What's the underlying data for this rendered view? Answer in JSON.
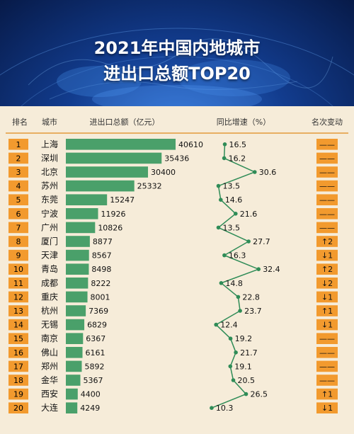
{
  "title_line1": "2021年中国内地城市",
  "title_line2": "进出口总额TOP20",
  "headers": {
    "rank": "排名",
    "city": "城市",
    "value": "进出口总额（亿元）",
    "growth": "同比增速（%）",
    "change": "名次变动"
  },
  "colors": {
    "bar": "#4aa06a",
    "badge": "#f29a2e",
    "line": "#2f8c57",
    "header_line": "#e39a3b"
  },
  "chart_data": [
    {
      "type": "bar",
      "orientation": "horizontal",
      "title": "进出口总额（亿元）",
      "categories": [
        "上海",
        "深圳",
        "北京",
        "苏州",
        "东莞",
        "宁波",
        "广州",
        "厦门",
        "天津",
        "青岛",
        "成都",
        "重庆",
        "杭州",
        "无锡",
        "南京",
        "佛山",
        "郑州",
        "金华",
        "西安",
        "大连"
      ],
      "ranks": [
        "1",
        "2",
        "3",
        "4",
        "5",
        "6",
        "7",
        "8",
        "9",
        "10",
        "11",
        "12",
        "13",
        "14",
        "15",
        "16",
        "17",
        "18",
        "19",
        "20"
      ],
      "values": [
        40610,
        35436,
        30400,
        25332,
        15247,
        11926,
        10826,
        8877,
        8567,
        8498,
        8222,
        8001,
        7369,
        6829,
        6367,
        6161,
        5892,
        5367,
        4400,
        4249
      ],
      "value_labels": [
        "40610",
        "35436",
        "30400",
        "25332",
        "15247",
        "11926",
        "10826",
        "8877",
        "8567",
        "8498",
        "8222",
        "8001",
        "7369",
        "6829",
        "6367",
        "6161",
        "5892",
        "5367",
        "4400",
        "4249"
      ]
    },
    {
      "type": "line",
      "title": "同比增速（%）",
      "categories": [
        "上海",
        "深圳",
        "北京",
        "苏州",
        "东莞",
        "宁波",
        "广州",
        "厦门",
        "天津",
        "青岛",
        "成都",
        "重庆",
        "杭州",
        "无锡",
        "南京",
        "佛山",
        "郑州",
        "金华",
        "西安",
        "大连"
      ],
      "values": [
        16.5,
        16.2,
        30.6,
        13.5,
        14.6,
        21.6,
        13.5,
        27.7,
        16.3,
        32.4,
        14.8,
        22.8,
        23.7,
        12.4,
        19.2,
        21.7,
        19.1,
        20.5,
        26.5,
        10.3
      ],
      "value_labels": [
        "16.5",
        "16.2",
        "30.6",
        "13.5",
        "14.6",
        "21.6",
        "13.5",
        "27.7",
        "16.3",
        "32.4",
        "14.8",
        "22.8",
        "23.7",
        "12.4",
        "19.2",
        "21.7",
        "19.1",
        "20.5",
        "26.5",
        "10.3"
      ]
    },
    {
      "type": "table",
      "title": "名次变动",
      "values": [
        "——",
        "——",
        "——",
        "——",
        "——",
        "——",
        "——",
        "↑2",
        "↓1",
        "↑2",
        "↓2",
        "↓1",
        "↑1",
        "↓1",
        "——",
        "——",
        "——",
        "——",
        "↑1",
        "↓1"
      ]
    }
  ]
}
